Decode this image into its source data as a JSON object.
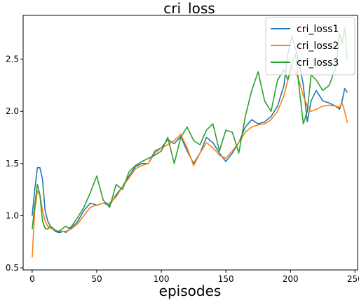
{
  "chart_data": {
    "type": "line",
    "title": "cri_loss",
    "xlabel": "episodes",
    "ylabel": "",
    "xlim": [
      -7,
      252
    ],
    "ylim": [
      0.48,
      2.92
    ],
    "xticks": [
      0,
      50,
      100,
      150,
      200,
      250
    ],
    "yticks": [
      0.5,
      1.0,
      1.5,
      2.0,
      2.5
    ],
    "xtick_labels": [
      "0",
      "50",
      "100",
      "150",
      "200",
      "250"
    ],
    "ytick_labels": [
      "0.5",
      "1.0",
      "1.5",
      "2.0",
      "2.5"
    ],
    "grid": false,
    "legend": "top-right",
    "series": [
      {
        "name": "cri_loss1",
        "color": "#1f77b4",
        "x": [
          0,
          2,
          4,
          6,
          8,
          10,
          12,
          14,
          16,
          18,
          20,
          22,
          24,
          26,
          28,
          30,
          35,
          40,
          45,
          50,
          55,
          60,
          65,
          70,
          75,
          80,
          85,
          90,
          95,
          100,
          105,
          110,
          115,
          120,
          125,
          130,
          135,
          140,
          145,
          150,
          155,
          160,
          165,
          170,
          175,
          180,
          185,
          190,
          195,
          198,
          201,
          204,
          207,
          210,
          213,
          216,
          220,
          225,
          230,
          235,
          238,
          240,
          242,
          244
        ],
        "y": [
          1.0,
          1.25,
          1.46,
          1.46,
          1.35,
          1.05,
          0.95,
          0.9,
          0.87,
          0.85,
          0.84,
          0.84,
          0.85,
          0.84,
          0.86,
          0.88,
          0.94,
          1.05,
          1.12,
          1.1,
          1.12,
          1.1,
          1.2,
          1.28,
          1.38,
          1.47,
          1.5,
          1.5,
          1.62,
          1.65,
          1.73,
          1.69,
          1.76,
          1.62,
          1.5,
          1.6,
          1.75,
          1.7,
          1.6,
          1.52,
          1.6,
          1.7,
          1.85,
          1.92,
          1.88,
          1.9,
          1.95,
          2.05,
          2.25,
          2.55,
          2.72,
          2.6,
          2.45,
          2.25,
          1.9,
          2.1,
          2.2,
          2.1,
          2.08,
          2.05,
          2.02,
          2.1,
          2.22,
          2.18
        ]
      },
      {
        "name": "cri_loss2",
        "color": "#ff7f0e",
        "x": [
          0,
          2,
          4,
          6,
          8,
          10,
          12,
          14,
          16,
          18,
          20,
          22,
          24,
          26,
          28,
          30,
          35,
          40,
          45,
          50,
          55,
          60,
          65,
          70,
          75,
          80,
          85,
          90,
          95,
          100,
          105,
          110,
          115,
          120,
          125,
          130,
          135,
          140,
          145,
          150,
          155,
          160,
          165,
          170,
          175,
          180,
          185,
          190,
          195,
          198,
          201,
          204,
          207,
          210,
          213,
          216,
          220,
          225,
          230,
          235,
          238,
          240,
          242,
          244
        ],
        "y": [
          0.6,
          1.05,
          1.24,
          1.2,
          1.05,
          0.95,
          0.9,
          0.88,
          0.87,
          0.86,
          0.85,
          0.85,
          0.85,
          0.85,
          0.86,
          0.87,
          0.92,
          1.0,
          1.08,
          1.1,
          1.12,
          1.12,
          1.18,
          1.28,
          1.36,
          1.45,
          1.48,
          1.5,
          1.6,
          1.65,
          1.68,
          1.72,
          1.78,
          1.65,
          1.48,
          1.6,
          1.7,
          1.65,
          1.58,
          1.55,
          1.62,
          1.7,
          1.8,
          1.85,
          1.87,
          1.88,
          1.92,
          2.0,
          2.15,
          2.3,
          2.42,
          2.38,
          2.28,
          2.15,
          2.05,
          2.0,
          2.02,
          2.05,
          2.06,
          2.05,
          2.04,
          2.08,
          2.0,
          1.89
        ]
      },
      {
        "name": "cri_loss3",
        "color": "#2ca02c",
        "x": [
          0,
          2,
          4,
          6,
          8,
          10,
          12,
          14,
          16,
          18,
          20,
          22,
          24,
          26,
          28,
          30,
          35,
          40,
          45,
          50,
          55,
          60,
          65,
          70,
          75,
          80,
          85,
          90,
          95,
          100,
          105,
          110,
          115,
          120,
          125,
          130,
          135,
          140,
          145,
          150,
          155,
          160,
          165,
          170,
          175,
          180,
          185,
          190,
          195,
          198,
          201,
          204,
          207,
          210,
          213,
          216,
          220,
          225,
          230,
          235,
          238,
          240,
          242,
          244
        ],
        "y": [
          0.87,
          1.1,
          1.3,
          1.2,
          0.95,
          0.88,
          0.87,
          0.9,
          0.88,
          0.86,
          0.85,
          0.86,
          0.88,
          0.9,
          0.88,
          0.89,
          0.98,
          1.08,
          1.22,
          1.38,
          1.15,
          1.08,
          1.3,
          1.25,
          1.42,
          1.48,
          1.52,
          1.55,
          1.58,
          1.62,
          1.75,
          1.5,
          1.75,
          1.85,
          1.72,
          1.68,
          1.82,
          1.88,
          1.62,
          1.82,
          1.8,
          1.6,
          1.95,
          2.2,
          2.38,
          2.1,
          2.0,
          2.3,
          2.4,
          2.3,
          2.45,
          2.55,
          2.2,
          1.88,
          2.0,
          2.35,
          2.3,
          2.2,
          2.25,
          2.42,
          2.75,
          2.65,
          2.8,
          2.5
        ]
      }
    ]
  }
}
